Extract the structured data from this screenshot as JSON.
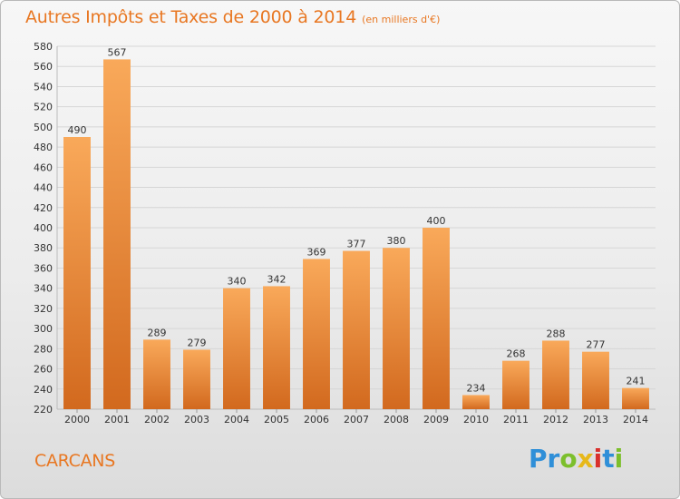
{
  "chart_data": {
    "type": "bar",
    "title": "Autres Impôts et Taxes de 2000 à 2014",
    "subtitle": "(en milliers d'€)",
    "categories": [
      "2000",
      "2001",
      "2002",
      "2003",
      "2004",
      "2005",
      "2006",
      "2007",
      "2008",
      "2009",
      "2010",
      "2011",
      "2012",
      "2013",
      "2014"
    ],
    "values": [
      490,
      567,
      289,
      279,
      340,
      342,
      369,
      377,
      380,
      400,
      234,
      268,
      288,
      277,
      241
    ],
    "ylim": [
      220,
      580
    ],
    "yticks": [
      220,
      240,
      260,
      280,
      300,
      320,
      340,
      360,
      380,
      400,
      420,
      440,
      460,
      480,
      500,
      520,
      540,
      560,
      580
    ],
    "grid": true,
    "xlabel": "",
    "ylabel": "",
    "colors": {
      "bar_light": "#f9a95a",
      "bar_dark": "#d2691e",
      "accent": "#e87722"
    }
  },
  "footer": {
    "city": "CARCANS",
    "logo_letters": [
      {
        "ch": "P",
        "color": "#2f8fd8"
      },
      {
        "ch": "r",
        "color": "#2f8fd8"
      },
      {
        "ch": "o",
        "color": "#7cbf2c"
      },
      {
        "ch": "x",
        "color": "#e7b81a"
      },
      {
        "ch": "i",
        "color": "#d9302c"
      },
      {
        "ch": "t",
        "color": "#2f8fd8"
      },
      {
        "ch": "i",
        "color": "#7cbf2c"
      }
    ]
  }
}
